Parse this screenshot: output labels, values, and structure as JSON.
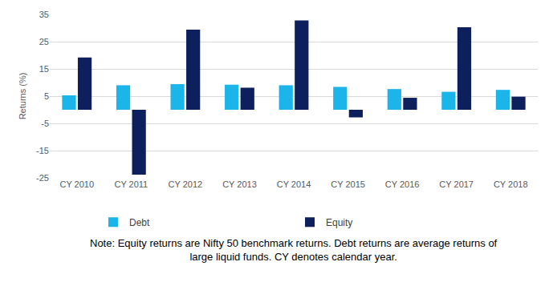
{
  "chart_data": {
    "type": "bar",
    "y_label": "Returns (%)",
    "categories": [
      "CY 2010",
      "CY 2011",
      "CY 2012",
      "CY 2013",
      "CY 2014",
      "CY 2015",
      "CY 2016",
      "CY 2017",
      "CY 2018"
    ],
    "series": [
      {
        "name": "Debt",
        "color": "#1cb5ea",
        "values": [
          5.3,
          9.0,
          9.4,
          9.2,
          9.0,
          8.4,
          7.6,
          6.6,
          7.3
        ]
      },
      {
        "name": "Equity",
        "color": "#0d1f5c",
        "values": [
          19.2,
          -23.8,
          29.4,
          8.1,
          32.8,
          -2.8,
          4.4,
          30.3,
          4.8
        ]
      }
    ],
    "ylim": [
      -25,
      35
    ],
    "yticks": [
      -25,
      -15,
      -5,
      5,
      15,
      25,
      35
    ],
    "grid": true,
    "legend": "bottom",
    "annotations": [
      "Note: Equity returns are Nifty 50 benchmark returns. Debt returns are average returns of large liquid funds. CY denotes calendar year."
    ]
  }
}
